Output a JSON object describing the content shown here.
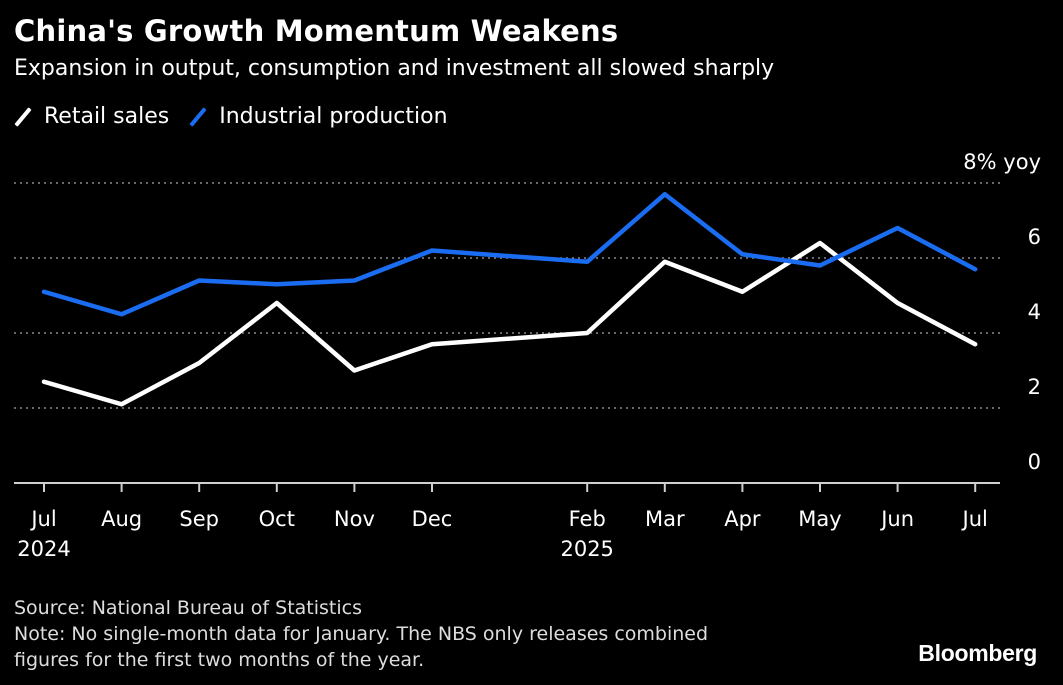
{
  "header": {
    "title": "China's Growth Momentum Weakens",
    "subtitle": "Expansion in output, consumption and investment all slowed sharply"
  },
  "legend": [
    {
      "label": "Retail sales",
      "color": "#ffffff"
    },
    {
      "label": "Industrial production",
      "color": "#1a6cf0"
    }
  ],
  "footer": {
    "source": "Source: National Bureau of Statistics",
    "note_line1": "Note: No single-month data for January. The NBS only releases combined",
    "note_line2": "figures for the first two months of the year."
  },
  "brand": "Bloomberg",
  "chart_data": {
    "type": "line",
    "x": [
      "2024-07",
      "2024-08",
      "2024-09",
      "2024-10",
      "2024-11",
      "2024-12",
      "2025-02",
      "2025-03",
      "2025-04",
      "2025-05",
      "2025-06",
      "2025-07"
    ],
    "x_tick_labels": [
      {
        "month": "Jul",
        "year": "2024"
      },
      {
        "month": "Aug",
        "year": ""
      },
      {
        "month": "Sep",
        "year": ""
      },
      {
        "month": "Oct",
        "year": ""
      },
      {
        "month": "Nov",
        "year": ""
      },
      {
        "month": "Dec",
        "year": ""
      },
      {
        "month": "Feb",
        "year": "2025"
      },
      {
        "month": "Mar",
        "year": ""
      },
      {
        "month": "Apr",
        "year": ""
      },
      {
        "month": "May",
        "year": ""
      },
      {
        "month": "Jun",
        "year": ""
      },
      {
        "month": "Jul",
        "year": ""
      }
    ],
    "series": [
      {
        "name": "Retail sales",
        "color": "#ffffff",
        "values": [
          2.7,
          2.1,
          3.2,
          4.8,
          3.0,
          3.7,
          4.0,
          5.9,
          5.1,
          6.4,
          4.8,
          3.7
        ]
      },
      {
        "name": "Industrial production",
        "color": "#1a6cf0",
        "values": [
          5.1,
          4.5,
          5.4,
          5.3,
          5.4,
          6.2,
          5.9,
          7.7,
          6.1,
          5.8,
          6.8,
          5.7
        ]
      }
    ],
    "ylim": [
      0,
      8
    ],
    "y_ticks": [
      0,
      2,
      4,
      6,
      8
    ],
    "y_tick_labels": [
      "0",
      "2",
      "4",
      "6",
      "8% yoy"
    ],
    "grid": true
  }
}
